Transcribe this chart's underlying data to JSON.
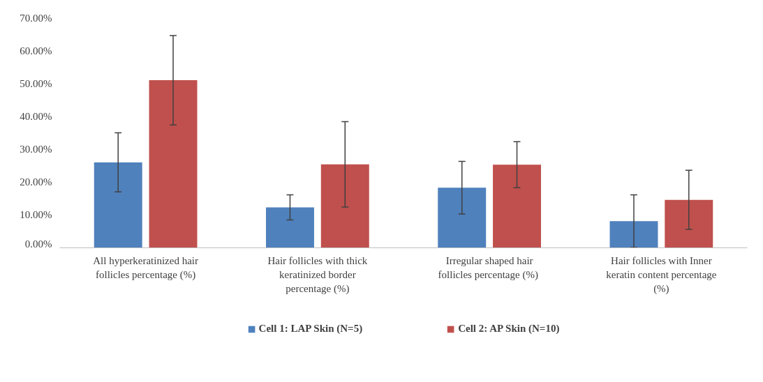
{
  "chart_data": {
    "type": "bar",
    "categories": [
      "All hyperkeratinized hair follicles percentage (%)",
      "Hair follicles with thick keratinized border percentage (%)",
      "Irregular shaped hair follicles  percentage (%)",
      "Hair follicles with Inner keratin content percentage (%)"
    ],
    "series": [
      {
        "name": "Cell 1: LAP Skin (N=5)",
        "color": "#4f81bd",
        "values": [
          26.0,
          12.3,
          18.3,
          8.1
        ],
        "errors": [
          9.0,
          3.8,
          8.0,
          8.0
        ]
      },
      {
        "name": "Cell 2: AP Skin (N=10)",
        "color": "#c0504d",
        "values": [
          51.0,
          25.4,
          25.3,
          14.6
        ],
        "errors": [
          13.6,
          13.0,
          7.0,
          9.0
        ]
      }
    ],
    "ylim": [
      0,
      70
    ],
    "yticks": [
      {
        "value": 0,
        "label": "0.00%"
      },
      {
        "value": 10,
        "label": "10.00%"
      },
      {
        "value": 20,
        "label": "20.00%"
      },
      {
        "value": 30,
        "label": "30.00%"
      },
      {
        "value": 40,
        "label": "40.00%"
      },
      {
        "value": 50,
        "label": "50.00%"
      },
      {
        "value": 60,
        "label": "60.00%"
      },
      {
        "value": 70,
        "label": "70.00%"
      }
    ],
    "grid": false,
    "legend": "bottom"
  }
}
